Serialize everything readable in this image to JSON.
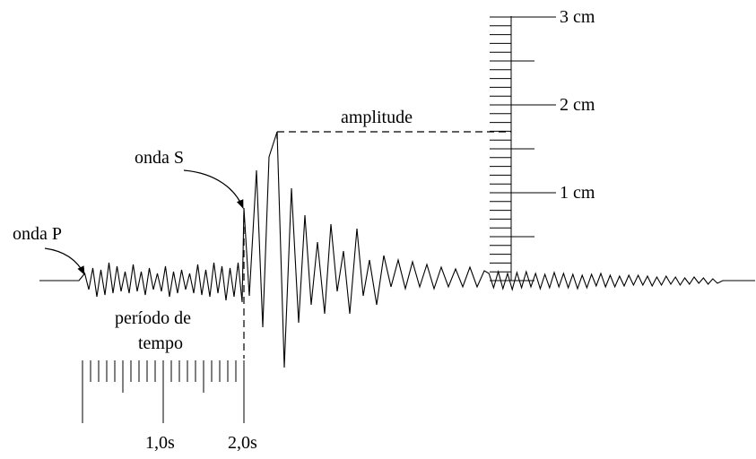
{
  "labels": {
    "wave_p": "onda P",
    "wave_s": "onda S",
    "amplitude": "amplitude",
    "period_line1": "período de",
    "period_line2": "tempo"
  },
  "amplitude_scale": {
    "labels": [
      "1 cm",
      "2 cm",
      "3 cm"
    ]
  },
  "time_scale": {
    "labels": [
      "1,0s",
      "2,0s"
    ]
  }
}
